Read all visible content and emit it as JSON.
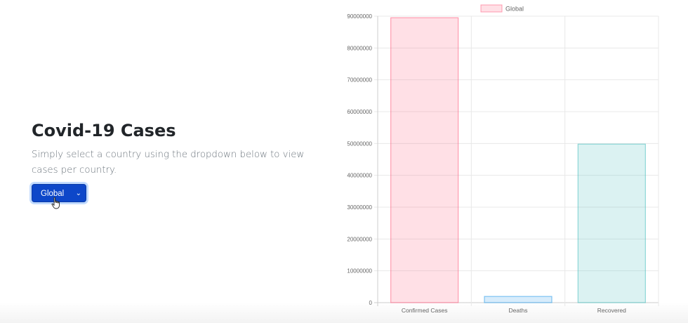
{
  "header": {
    "title": "Covid-19 Cases",
    "subtitle": "Simply select a country using the dropdown below to view cases per country."
  },
  "country_select": {
    "selected": "Global"
  },
  "colors": {
    "button": "#0d47c9",
    "confirmed_fill": "rgba(255, 99, 132, 0.2)",
    "confirmed_stroke": "rgba(255, 99, 132, 0.6)",
    "deaths_fill": "rgba(54, 162, 235, 0.2)",
    "deaths_stroke": "rgba(54, 162, 235, 0.6)",
    "recovered_fill": "rgba(75, 192, 192, 0.2)",
    "recovered_stroke": "rgba(75, 192, 192, 0.6)"
  },
  "chart_data": {
    "type": "bar",
    "categories": [
      "Confirmed Cases",
      "Deaths",
      "Recovered"
    ],
    "series": [
      {
        "name": "Global",
        "values": [
          89500000,
          1950000,
          49800000
        ]
      }
    ],
    "legend_position": "top",
    "ylim": [
      0,
      90000000
    ],
    "yticks": [
      "0",
      "10000000",
      "20000000",
      "30000000",
      "40000000",
      "50000000",
      "60000000",
      "70000000",
      "80000000",
      "90000000"
    ],
    "grid": true,
    "title": "",
    "xlabel": "",
    "ylabel": ""
  }
}
